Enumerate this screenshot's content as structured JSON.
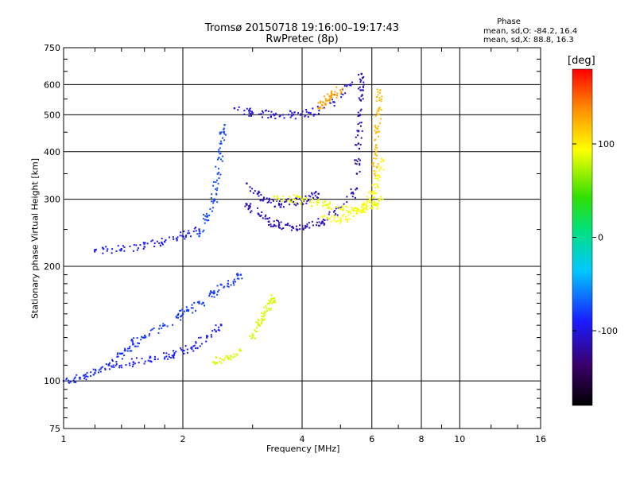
{
  "header": {
    "title": "Tromsø 20150718 19:16:00–19:17:43",
    "subtitle": "RwPretec (8p)",
    "phase_heading": "Phase",
    "stat_o": "mean, sd,O: -84.2, 16.4",
    "stat_x": "mean, sd,X:  88.8, 16.3"
  },
  "colorbar": {
    "unit_label": "[deg]",
    "range": [
      -180,
      180
    ],
    "ticks": [
      {
        "value": 100,
        "label": "100"
      },
      {
        "value": 0,
        "label": "0"
      },
      {
        "value": -100,
        "label": "-100"
      }
    ]
  },
  "chart_data": {
    "type": "scatter",
    "title": "Tromsø 20150718 19:16:00–19:17:43",
    "subtitle": "RwPretec (8p)",
    "xlabel": "Frequency [MHz]",
    "ylabel": "Stationary phase Virtual Height [km]",
    "x_scale": "log",
    "y_scale": "log",
    "xlim": [
      1,
      16
    ],
    "ylim": [
      75,
      750
    ],
    "grid": true,
    "x_ticks": [
      {
        "value": 1,
        "label": "1"
      },
      {
        "value": 2,
        "label": "2"
      },
      {
        "value": 4,
        "label": "4"
      },
      {
        "value": 6,
        "label": "6"
      },
      {
        "value": 8,
        "label": "8"
      },
      {
        "value": 10,
        "label": "10"
      },
      {
        "value": 16,
        "label": "16"
      }
    ],
    "y_ticks": [
      {
        "value": 75,
        "label": "75"
      },
      {
        "value": 100,
        "label": "100"
      },
      {
        "value": 200,
        "label": "200"
      },
      {
        "value": 300,
        "label": "300"
      },
      {
        "value": 400,
        "label": "400"
      },
      {
        "value": 500,
        "label": "500"
      },
      {
        "value": 600,
        "label": "600"
      },
      {
        "value": 750,
        "label": "750"
      }
    ],
    "color_by": "phase (deg)",
    "traces": [
      {
        "mode": "O",
        "phase": -84,
        "x": [
          1.0,
          1.1,
          1.2,
          1.3,
          1.4,
          1.5,
          1.6
        ],
        "y": [
          100,
          102,
          105,
          110,
          118,
          125,
          130
        ]
      },
      {
        "mode": "O",
        "phase": -90,
        "x": [
          1.3,
          1.5,
          1.7,
          1.9,
          2.1,
          2.3,
          2.5
        ],
        "y": [
          110,
          112,
          114,
          117,
          122,
          130,
          140
        ]
      },
      {
        "mode": "O",
        "phase": -80,
        "x": [
          1.6,
          1.8,
          2.0,
          2.2,
          2.4,
          2.6,
          2.8
        ],
        "y": [
          130,
          140,
          150,
          160,
          170,
          180,
          190
        ]
      },
      {
        "mode": "O",
        "phase": -92,
        "x": [
          1.2,
          1.4,
          1.6,
          1.8,
          2.0,
          2.2
        ],
        "y": [
          220,
          222,
          225,
          232,
          240,
          250
        ]
      },
      {
        "mode": "O",
        "phase": -75,
        "x": [
          2.2,
          2.3,
          2.4,
          2.45,
          2.5,
          2.55
        ],
        "y": [
          240,
          270,
          300,
          350,
          420,
          470
        ]
      },
      {
        "mode": "O",
        "phase": -100,
        "x": [
          2.7,
          3.0,
          3.4,
          3.8,
          4.2,
          4.8,
          5.3
        ],
        "y": [
          520,
          505,
          500,
          500,
          505,
          540,
          600
        ]
      },
      {
        "mode": "O",
        "phase": -112,
        "x": [
          2.9,
          3.1,
          3.3,
          3.5,
          3.8,
          4.1,
          4.5,
          5.0,
          5.5
        ],
        "y": [
          290,
          275,
          262,
          257,
          252,
          254,
          262,
          285,
          320
        ]
      },
      {
        "mode": "O",
        "phase": -115,
        "x": [
          5.5,
          5.55,
          5.6,
          5.62,
          5.65
        ],
        "y": [
          350,
          420,
          500,
          580,
          640
        ]
      },
      {
        "mode": "O",
        "phase": -108,
        "x": [
          2.9,
          3.2,
          3.5,
          3.8,
          4.1,
          4.4
        ],
        "y": [
          330,
          300,
          290,
          295,
          300,
          310
        ]
      },
      {
        "mode": "X",
        "phase": 85,
        "x": [
          2.4,
          2.6,
          2.8
        ],
        "y": [
          112,
          115,
          120
        ]
      },
      {
        "mode": "X",
        "phase": 85,
        "x": [
          3.0,
          3.1,
          3.2,
          3.3,
          3.4
        ],
        "y": [
          130,
          140,
          150,
          160,
          165
        ]
      },
      {
        "mode": "X",
        "phase": 90,
        "x": [
          3.4,
          3.8,
          4.2,
          4.6,
          5.0,
          5.4,
          5.8,
          6.1,
          6.3
        ],
        "y": [
          305,
          300,
          295,
          290,
          283,
          280,
          285,
          290,
          300
        ]
      },
      {
        "mode": "X",
        "phase": 95,
        "x": [
          4.5,
          5.0,
          5.5,
          5.8,
          6.0,
          6.2,
          6.4
        ],
        "y": [
          270,
          265,
          275,
          290,
          310,
          340,
          380
        ]
      },
      {
        "mode": "X",
        "phase": 120,
        "x": [
          6.1,
          6.15,
          6.2,
          6.25,
          6.3
        ],
        "y": [
          350,
          400,
          460,
          520,
          580
        ]
      },
      {
        "mode": "X",
        "phase": 130,
        "x": [
          4.4,
          4.6,
          4.8,
          5.0
        ],
        "y": [
          520,
          545,
          565,
          580
        ]
      }
    ]
  }
}
